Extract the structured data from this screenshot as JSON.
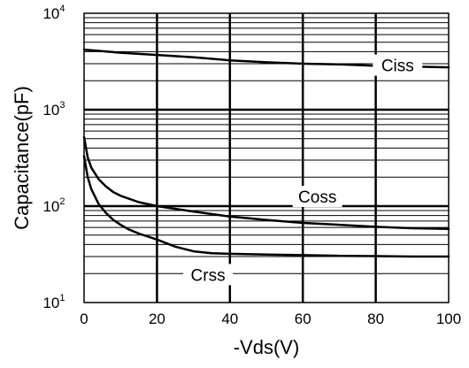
{
  "chart_data": {
    "type": "line",
    "title": "",
    "xlabel": "-Vds(V)",
    "ylabel": "Capacitance(pF)",
    "xlim": [
      0,
      100
    ],
    "ylim": [
      10,
      10000
    ],
    "yscale": "log",
    "grid": true,
    "x_ticks": [
      "0",
      "20",
      "40",
      "60",
      "80",
      "100"
    ],
    "y_ticks": [
      {
        "base": "10",
        "exp": "1"
      },
      {
        "base": "10",
        "exp": "2"
      },
      {
        "base": "10",
        "exp": "3"
      },
      {
        "base": "10",
        "exp": "4"
      }
    ],
    "series": [
      {
        "name": "Ciss",
        "x": [
          0,
          10,
          20,
          30,
          40,
          50,
          60,
          70,
          80,
          90,
          100
        ],
        "y": [
          4200,
          3900,
          3700,
          3500,
          3250,
          3100,
          3000,
          2950,
          2850,
          2800,
          2750
        ]
      },
      {
        "name": "Coss",
        "x": [
          0,
          1,
          2,
          4,
          6,
          8,
          10,
          15,
          20,
          30,
          40,
          50,
          60,
          70,
          80,
          90,
          100
        ],
        "y": [
          520,
          320,
          250,
          190,
          160,
          140,
          128,
          110,
          100,
          88,
          78,
          72,
          67,
          64,
          61,
          59,
          58
        ]
      },
      {
        "name": "Crss",
        "x": [
          0,
          1,
          2,
          4,
          6,
          8,
          10,
          12,
          15,
          20,
          25,
          30,
          35,
          40,
          50,
          60,
          70,
          80,
          90,
          100
        ],
        "y": [
          330,
          200,
          150,
          105,
          85,
          72,
          64,
          58,
          52,
          45,
          38,
          34,
          32.5,
          32,
          31.5,
          31,
          30.5,
          30.3,
          30,
          30
        ]
      }
    ]
  }
}
